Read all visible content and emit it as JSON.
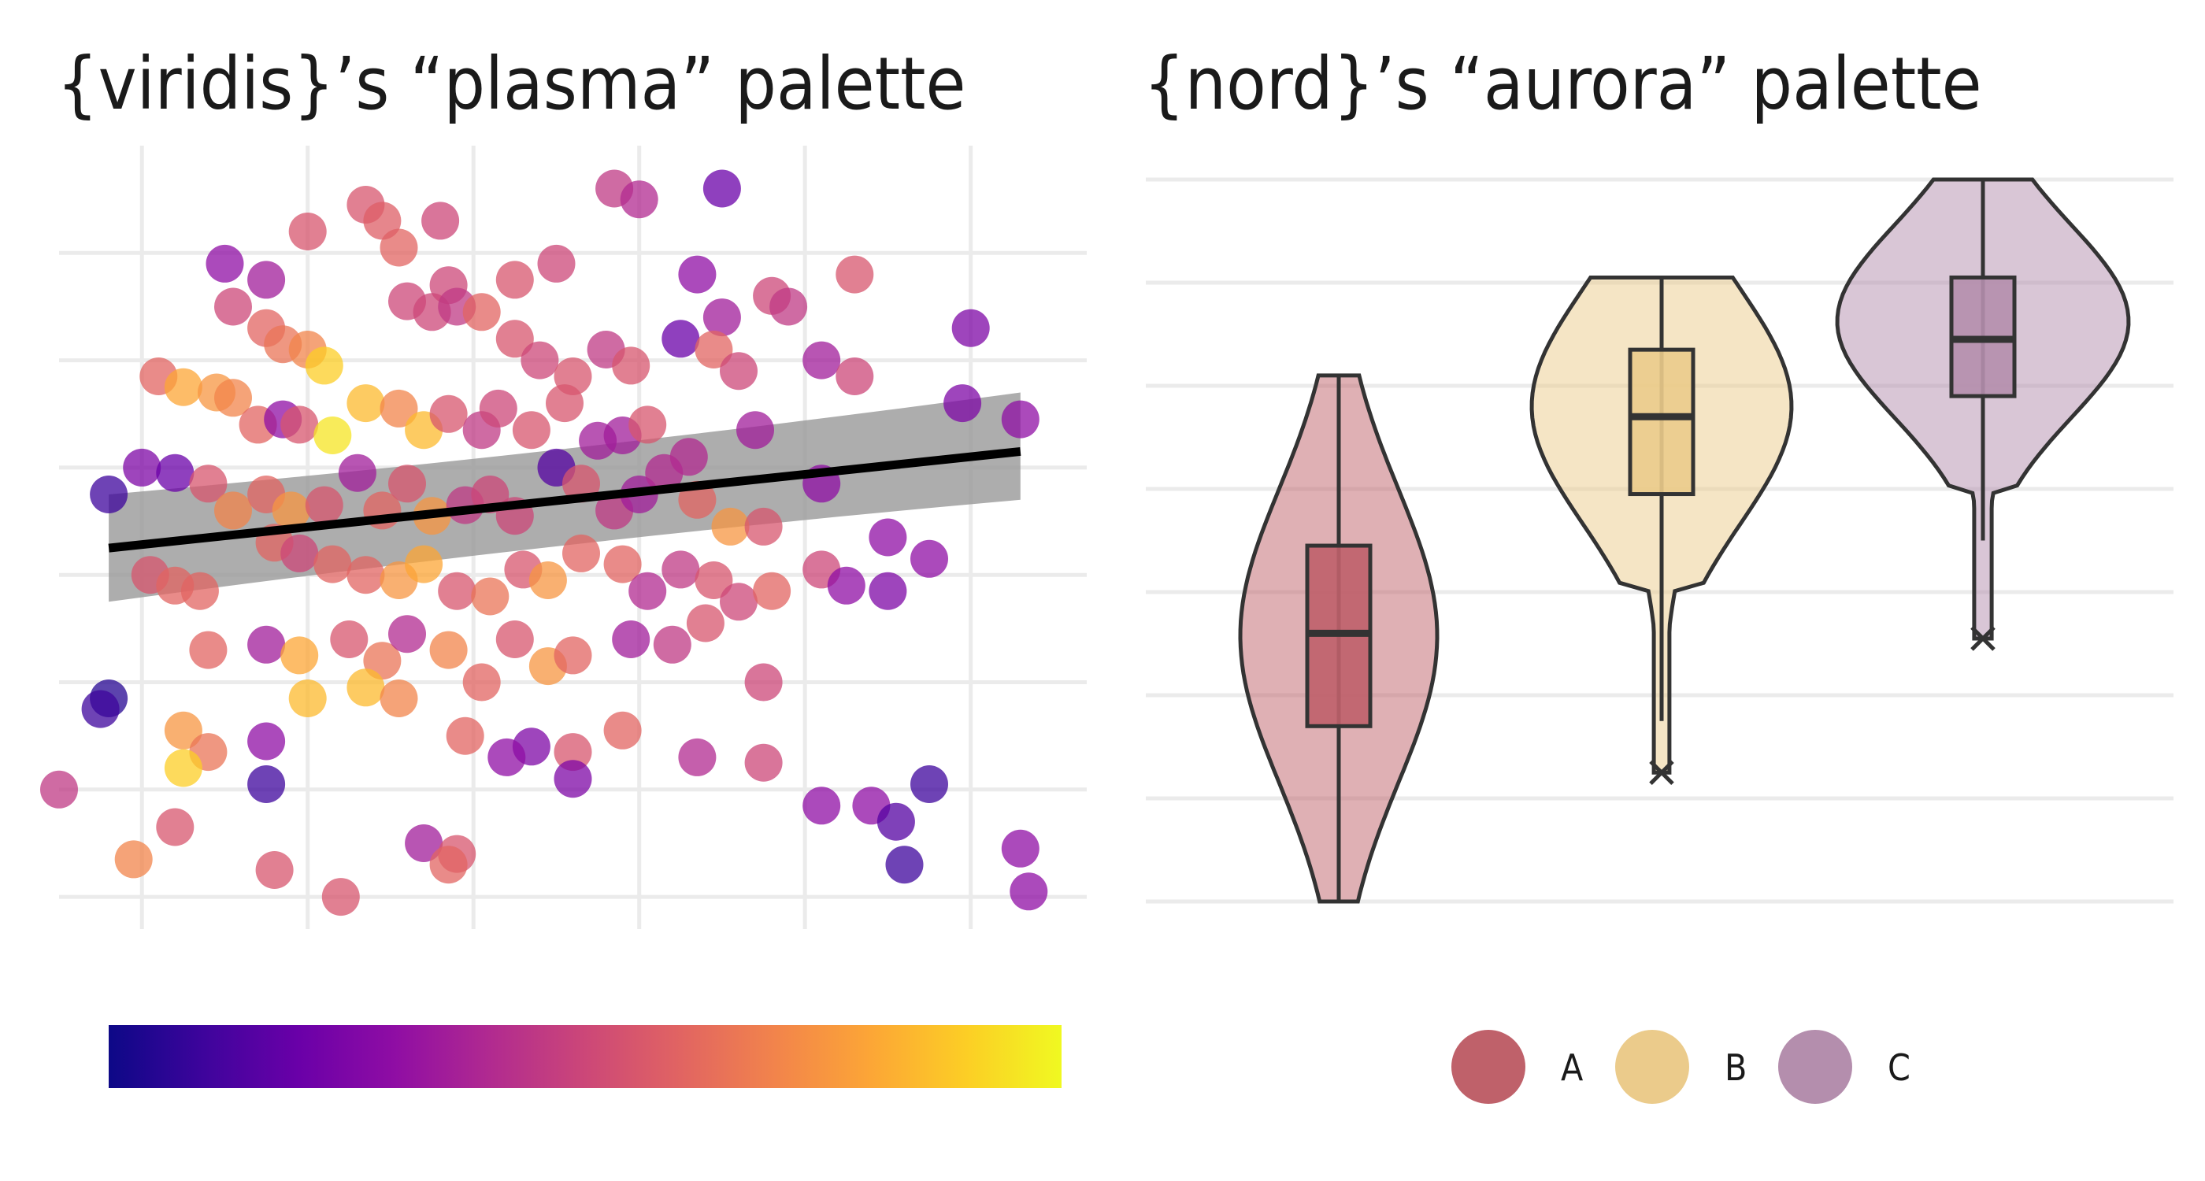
{
  "chart_data": [
    {
      "type": "scatter",
      "title": "{viridis}’s “plasma” palette",
      "palette_name": "plasma",
      "palette": [
        "#0d0887",
        "#3e049c",
        "#6a00a8",
        "#8f0da4",
        "#b12a90",
        "#cc4778",
        "#e16462",
        "#f2844b",
        "#fca636",
        "#fcce25",
        "#f0f921"
      ],
      "xlim": [
        -0.5,
        5.7
      ],
      "ylim": [
        -0.3,
        7.0
      ],
      "grid": true,
      "axis_labels_shown": false,
      "point_alpha": 0.75,
      "trend": {
        "method": "linear",
        "x": [
          -0.2,
          5.3
        ],
        "y": [
          3.25,
          4.15
        ],
        "ci_lower": [
          2.8,
          3.75
        ],
        "ci_upper": [
          3.7,
          4.65
        ],
        "line_color": "#000000",
        "band_color": "#999999"
      },
      "points": [
        {
          "x": 1.35,
          "y": 6.45,
          "c": 0.55
        },
        {
          "x": 1.8,
          "y": 6.3,
          "c": 0.5
        },
        {
          "x": 2.85,
          "y": 6.6,
          "c": 0.45
        },
        {
          "x": 3.0,
          "y": 6.5,
          "c": 0.4
        },
        {
          "x": 3.5,
          "y": 6.6,
          "c": 0.2
        },
        {
          "x": 1.0,
          "y": 6.2,
          "c": 0.55
        },
        {
          "x": 1.55,
          "y": 6.05,
          "c": 0.6
        },
        {
          "x": 1.45,
          "y": 6.3,
          "c": 0.58
        },
        {
          "x": 0.5,
          "y": 5.9,
          "c": 0.3
        },
        {
          "x": 0.75,
          "y": 5.75,
          "c": 0.35
        },
        {
          "x": 1.85,
          "y": 5.7,
          "c": 0.5
        },
        {
          "x": 2.25,
          "y": 5.75,
          "c": 0.55
        },
        {
          "x": 2.5,
          "y": 5.9,
          "c": 0.5
        },
        {
          "x": 3.35,
          "y": 5.8,
          "c": 0.3
        },
        {
          "x": 3.5,
          "y": 5.4,
          "c": 0.35
        },
        {
          "x": 3.8,
          "y": 5.6,
          "c": 0.5
        },
        {
          "x": 4.3,
          "y": 5.8,
          "c": 0.55
        },
        {
          "x": 5.0,
          "y": 5.3,
          "c": 0.25
        },
        {
          "x": 0.55,
          "y": 5.5,
          "c": 0.5
        },
        {
          "x": 0.75,
          "y": 5.3,
          "c": 0.6
        },
        {
          "x": 0.85,
          "y": 5.15,
          "c": 0.65
        },
        {
          "x": 1.0,
          "y": 5.1,
          "c": 0.7
        },
        {
          "x": 1.1,
          "y": 4.95,
          "c": 0.9
        },
        {
          "x": 1.6,
          "y": 5.55,
          "c": 0.5
        },
        {
          "x": 1.75,
          "y": 5.45,
          "c": 0.5
        },
        {
          "x": 1.9,
          "y": 5.5,
          "c": 0.45
        },
        {
          "x": 2.05,
          "y": 5.45,
          "c": 0.6
        },
        {
          "x": 2.25,
          "y": 5.2,
          "c": 0.55
        },
        {
          "x": 2.4,
          "y": 5.0,
          "c": 0.5
        },
        {
          "x": 2.6,
          "y": 4.85,
          "c": 0.55
        },
        {
          "x": 2.8,
          "y": 5.1,
          "c": 0.45
        },
        {
          "x": 2.95,
          "y": 4.95,
          "c": 0.55
        },
        {
          "x": 3.25,
          "y": 5.2,
          "c": 0.2
        },
        {
          "x": 3.45,
          "y": 5.1,
          "c": 0.6
        },
        {
          "x": 3.6,
          "y": 4.9,
          "c": 0.5
        },
        {
          "x": 3.9,
          "y": 5.5,
          "c": 0.45
        },
        {
          "x": 4.1,
          "y": 5.0,
          "c": 0.35
        },
        {
          "x": 4.3,
          "y": 4.85,
          "c": 0.5
        },
        {
          "x": 0.1,
          "y": 4.85,
          "c": 0.6
        },
        {
          "x": 0.25,
          "y": 4.75,
          "c": 0.8
        },
        {
          "x": 0.45,
          "y": 4.7,
          "c": 0.75
        },
        {
          "x": 0.55,
          "y": 4.65,
          "c": 0.7
        },
        {
          "x": 0.7,
          "y": 4.4,
          "c": 0.6
        },
        {
          "x": 0.85,
          "y": 4.45,
          "c": 0.3
        },
        {
          "x": 0.95,
          "y": 4.4,
          "c": 0.55
        },
        {
          "x": 1.15,
          "y": 4.3,
          "c": 0.95
        },
        {
          "x": 1.35,
          "y": 4.6,
          "c": 0.85
        },
        {
          "x": 1.55,
          "y": 4.55,
          "c": 0.7
        },
        {
          "x": 1.7,
          "y": 4.35,
          "c": 0.85
        },
        {
          "x": 1.85,
          "y": 4.5,
          "c": 0.55
        },
        {
          "x": 2.05,
          "y": 4.35,
          "c": 0.45
        },
        {
          "x": 2.15,
          "y": 4.55,
          "c": 0.5
        },
        {
          "x": 2.35,
          "y": 4.35,
          "c": 0.55
        },
        {
          "x": 2.55,
          "y": 4.6,
          "c": 0.55
        },
        {
          "x": 2.75,
          "y": 4.25,
          "c": 0.35
        },
        {
          "x": 2.9,
          "y": 4.3,
          "c": 0.35
        },
        {
          "x": 3.05,
          "y": 4.4,
          "c": 0.55
        },
        {
          "x": 3.3,
          "y": 4.1,
          "c": 0.4
        },
        {
          "x": 3.7,
          "y": 4.35,
          "c": 0.35
        },
        {
          "x": 4.95,
          "y": 4.6,
          "c": 0.25
        },
        {
          "x": 5.3,
          "y": 4.45,
          "c": 0.3
        },
        {
          "x": -0.2,
          "y": 3.75,
          "c": 0.1
        },
        {
          "x": 0.0,
          "y": 4.0,
          "c": 0.25
        },
        {
          "x": 0.2,
          "y": 3.95,
          "c": 0.2
        },
        {
          "x": 0.4,
          "y": 3.85,
          "c": 0.55
        },
        {
          "x": 0.55,
          "y": 3.6,
          "c": 0.7
        },
        {
          "x": 0.75,
          "y": 3.75,
          "c": 0.6
        },
        {
          "x": 0.9,
          "y": 3.6,
          "c": 0.75
        },
        {
          "x": 1.1,
          "y": 3.65,
          "c": 0.55
        },
        {
          "x": 1.3,
          "y": 3.95,
          "c": 0.35
        },
        {
          "x": 1.45,
          "y": 3.6,
          "c": 0.6
        },
        {
          "x": 1.6,
          "y": 3.85,
          "c": 0.55
        },
        {
          "x": 1.75,
          "y": 3.55,
          "c": 0.75
        },
        {
          "x": 1.95,
          "y": 3.65,
          "c": 0.45
        },
        {
          "x": 2.1,
          "y": 3.75,
          "c": 0.5
        },
        {
          "x": 2.25,
          "y": 3.55,
          "c": 0.5
        },
        {
          "x": 2.5,
          "y": 4.0,
          "c": 0.15
        },
        {
          "x": 2.65,
          "y": 3.85,
          "c": 0.55
        },
        {
          "x": 2.85,
          "y": 3.6,
          "c": 0.45
        },
        {
          "x": 3.0,
          "y": 3.75,
          "c": 0.35
        },
        {
          "x": 3.15,
          "y": 3.95,
          "c": 0.4
        },
        {
          "x": 3.35,
          "y": 3.7,
          "c": 0.6
        },
        {
          "x": 3.55,
          "y": 3.45,
          "c": 0.75
        },
        {
          "x": 3.75,
          "y": 3.45,
          "c": 0.55
        },
        {
          "x": 4.1,
          "y": 3.85,
          "c": 0.3
        },
        {
          "x": 4.5,
          "y": 3.35,
          "c": 0.3
        },
        {
          "x": 4.75,
          "y": 3.15,
          "c": 0.3
        },
        {
          "x": 0.05,
          "y": 3.0,
          "c": 0.55
        },
        {
          "x": 0.2,
          "y": 2.9,
          "c": 0.6
        },
        {
          "x": 0.35,
          "y": 2.85,
          "c": 0.6
        },
        {
          "x": 0.8,
          "y": 3.3,
          "c": 0.6
        },
        {
          "x": 0.95,
          "y": 3.2,
          "c": 0.5
        },
        {
          "x": 1.15,
          "y": 3.1,
          "c": 0.6
        },
        {
          "x": 1.35,
          "y": 3.0,
          "c": 0.6
        },
        {
          "x": 1.55,
          "y": 2.95,
          "c": 0.75
        },
        {
          "x": 1.7,
          "y": 3.1,
          "c": 0.8
        },
        {
          "x": 1.9,
          "y": 2.85,
          "c": 0.55
        },
        {
          "x": 2.1,
          "y": 2.8,
          "c": 0.65
        },
        {
          "x": 2.3,
          "y": 3.05,
          "c": 0.55
        },
        {
          "x": 2.45,
          "y": 2.95,
          "c": 0.75
        },
        {
          "x": 2.65,
          "y": 3.2,
          "c": 0.6
        },
        {
          "x": 2.9,
          "y": 3.1,
          "c": 0.6
        },
        {
          "x": 3.05,
          "y": 2.85,
          "c": 0.4
        },
        {
          "x": 3.25,
          "y": 3.05,
          "c": 0.45
        },
        {
          "x": 3.45,
          "y": 2.95,
          "c": 0.55
        },
        {
          "x": 3.6,
          "y": 2.75,
          "c": 0.5
        },
        {
          "x": 3.8,
          "y": 2.85,
          "c": 0.6
        },
        {
          "x": 4.1,
          "y": 3.05,
          "c": 0.5
        },
        {
          "x": 4.25,
          "y": 2.9,
          "c": 0.3
        },
        {
          "x": 4.5,
          "y": 2.85,
          "c": 0.25
        },
        {
          "x": 0.4,
          "y": 2.3,
          "c": 0.6
        },
        {
          "x": 0.75,
          "y": 2.35,
          "c": 0.35
        },
        {
          "x": 0.95,
          "y": 2.25,
          "c": 0.8
        },
        {
          "x": 1.25,
          "y": 2.4,
          "c": 0.55
        },
        {
          "x": 1.45,
          "y": 2.2,
          "c": 0.65
        },
        {
          "x": 1.6,
          "y": 2.45,
          "c": 0.4
        },
        {
          "x": 1.85,
          "y": 2.3,
          "c": 0.7
        },
        {
          "x": 2.05,
          "y": 2.0,
          "c": 0.6
        },
        {
          "x": 2.25,
          "y": 2.4,
          "c": 0.55
        },
        {
          "x": 2.45,
          "y": 2.15,
          "c": 0.75
        },
        {
          "x": 2.6,
          "y": 2.25,
          "c": 0.6
        },
        {
          "x": 2.95,
          "y": 2.4,
          "c": 0.35
        },
        {
          "x": 3.2,
          "y": 2.35,
          "c": 0.45
        },
        {
          "x": 3.4,
          "y": 2.55,
          "c": 0.55
        },
        {
          "x": 3.75,
          "y": 2.0,
          "c": 0.5
        },
        {
          "x": -0.2,
          "y": 1.85,
          "c": 0.05
        },
        {
          "x": -0.25,
          "y": 1.75,
          "c": 0.1
        },
        {
          "x": 0.25,
          "y": 1.55,
          "c": 0.75
        },
        {
          "x": 0.4,
          "y": 1.35,
          "c": 0.65
        },
        {
          "x": 0.75,
          "y": 1.45,
          "c": 0.3
        },
        {
          "x": 1.0,
          "y": 1.85,
          "c": 0.85
        },
        {
          "x": 1.35,
          "y": 1.95,
          "c": 0.85
        },
        {
          "x": 1.55,
          "y": 1.85,
          "c": 0.7
        },
        {
          "x": 1.95,
          "y": 1.5,
          "c": 0.6
        },
        {
          "x": 2.35,
          "y": 1.4,
          "c": 0.25
        },
        {
          "x": 2.6,
          "y": 1.35,
          "c": 0.55
        },
        {
          "x": 2.9,
          "y": 1.55,
          "c": 0.6
        },
        {
          "x": 3.35,
          "y": 1.3,
          "c": 0.4
        },
        {
          "x": 3.75,
          "y": 1.25,
          "c": 0.5
        },
        {
          "x": 0.25,
          "y": 1.2,
          "c": 0.9
        },
        {
          "x": 0.75,
          "y": 1.05,
          "c": 0.1
        },
        {
          "x": 2.2,
          "y": 1.3,
          "c": 0.3
        },
        {
          "x": 2.6,
          "y": 1.1,
          "c": 0.25
        },
        {
          "x": -0.5,
          "y": 1.0,
          "c": 0.45
        },
        {
          "x": -0.05,
          "y": 0.35,
          "c": 0.7
        },
        {
          "x": 0.2,
          "y": 0.65,
          "c": 0.55
        },
        {
          "x": 0.8,
          "y": 0.25,
          "c": 0.55
        },
        {
          "x": 1.2,
          "y": 0.0,
          "c": 0.55
        },
        {
          "x": 1.7,
          "y": 0.5,
          "c": 0.35
        },
        {
          "x": 1.9,
          "y": 0.4,
          "c": 0.55
        },
        {
          "x": 1.85,
          "y": 0.3,
          "c": 0.6
        },
        {
          "x": 4.1,
          "y": 0.85,
          "c": 0.3
        },
        {
          "x": 4.4,
          "y": 0.85,
          "c": 0.3
        },
        {
          "x": 4.55,
          "y": 0.7,
          "c": 0.15
        },
        {
          "x": 4.75,
          "y": 1.05,
          "c": 0.1
        },
        {
          "x": 4.6,
          "y": 0.3,
          "c": 0.1
        },
        {
          "x": 5.3,
          "y": 0.45,
          "c": 0.3
        },
        {
          "x": 5.35,
          "y": 0.05,
          "c": 0.3
        }
      ],
      "colorbar": {
        "orientation": "horizontal",
        "labels_shown": false
      }
    },
    {
      "type": "violin",
      "title": "{nord}’s “aurora” palette",
      "palette_name": "aurora",
      "grid": true,
      "axis_labels_shown": false,
      "ylim": [
        0,
        7
      ],
      "legend": {
        "position": "bottom",
        "entries": [
          "A",
          "B",
          "C"
        ]
      },
      "groups": [
        {
          "name": "A",
          "color": "#bf616a",
          "min": 0.0,
          "q1": 1.7,
          "median": 2.6,
          "q3": 3.45,
          "max": 5.1,
          "outliers": []
        },
        {
          "name": "B",
          "color": "#ebcb8b",
          "min": 1.75,
          "q1": 3.95,
          "median": 4.7,
          "q3": 5.35,
          "max": 6.05,
          "outliers": [
            1.25
          ]
        },
        {
          "name": "C",
          "color": "#b48ead",
          "min": 3.5,
          "q1": 4.9,
          "median": 5.45,
          "q3": 6.05,
          "max": 7.0,
          "outliers": [
            2.55
          ]
        }
      ]
    }
  ]
}
